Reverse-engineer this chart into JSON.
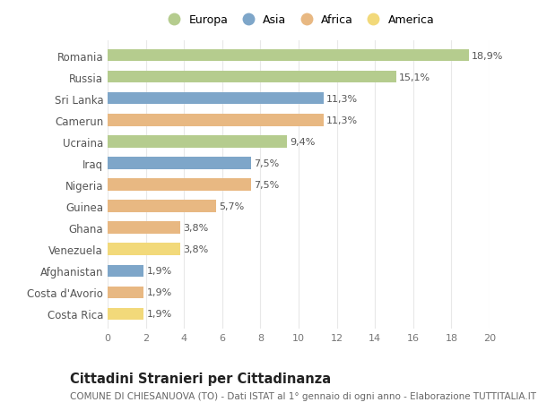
{
  "countries": [
    "Romania",
    "Russia",
    "Sri Lanka",
    "Camerun",
    "Ucraina",
    "Iraq",
    "Nigeria",
    "Guinea",
    "Ghana",
    "Venezuela",
    "Afghanistan",
    "Costa d'Avorio",
    "Costa Rica"
  ],
  "values": [
    18.9,
    15.1,
    11.3,
    11.3,
    9.4,
    7.5,
    7.5,
    5.7,
    3.8,
    3.8,
    1.9,
    1.9,
    1.9
  ],
  "labels": [
    "18,9%",
    "15,1%",
    "11,3%",
    "11,3%",
    "9,4%",
    "7,5%",
    "7,5%",
    "5,7%",
    "3,8%",
    "3,8%",
    "1,9%",
    "1,9%",
    "1,9%"
  ],
  "continents": [
    "Europa",
    "Europa",
    "Asia",
    "Africa",
    "Europa",
    "Asia",
    "Africa",
    "Africa",
    "Africa",
    "America",
    "Asia",
    "Africa",
    "America"
  ],
  "continent_colors": {
    "Europa": "#b5cc8e",
    "Asia": "#7ea6c9",
    "Africa": "#e8b882",
    "America": "#f2d97a"
  },
  "legend_order": [
    "Europa",
    "Asia",
    "Africa",
    "America"
  ],
  "title": "Cittadini Stranieri per Cittadinanza",
  "subtitle": "COMUNE DI CHIESANUOVA (TO) - Dati ISTAT al 1° gennaio di ogni anno - Elaborazione TUTTITALIA.IT",
  "xlim": [
    0,
    20
  ],
  "xticks": [
    0,
    2,
    4,
    6,
    8,
    10,
    12,
    14,
    16,
    18,
    20
  ],
  "background_color": "#ffffff",
  "grid_color": "#e8e8e8",
  "bar_height": 0.55,
  "label_fontsize": 8,
  "title_fontsize": 10.5,
  "subtitle_fontsize": 7.5,
  "ytick_fontsize": 8.5,
  "xtick_fontsize": 8
}
